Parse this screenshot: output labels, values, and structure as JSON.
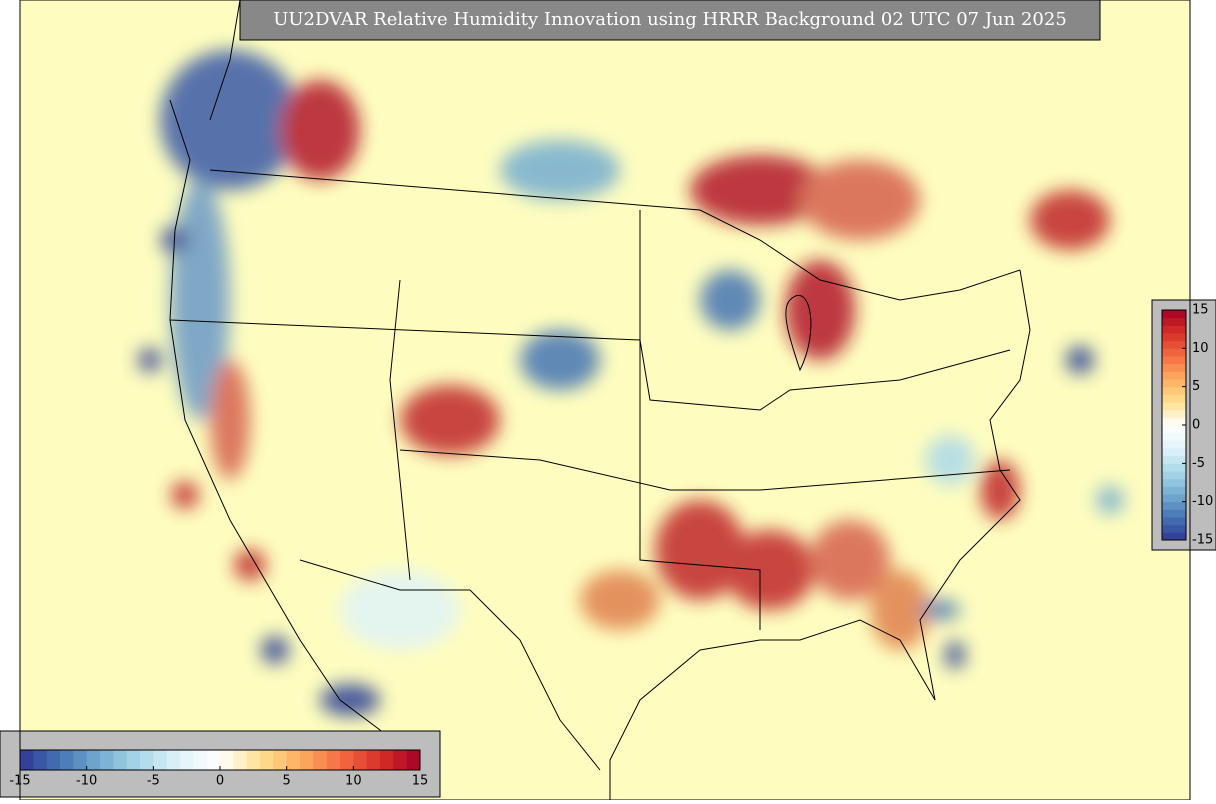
{
  "title": "UU2DVAR Relative Humidity Innovation using HRRR Background 02 UTC 07 Jun 2025",
  "colormap": [
    "#313695",
    "#4575b4",
    "#74add1",
    "#abd9e9",
    "#e0f3f8",
    "#ffffff",
    "#fee090",
    "#fdae61",
    "#f46d43",
    "#d73027",
    "#a50026"
  ],
  "colorbar_right": {
    "range": [
      -15,
      15
    ],
    "ticks": [
      -15,
      -10,
      -5,
      0,
      5,
      10,
      15
    ]
  },
  "colorbar_bottom": {
    "range": [
      -15,
      15
    ],
    "ticks": [
      -15,
      -10,
      -5,
      0,
      5,
      10,
      15
    ]
  }
}
